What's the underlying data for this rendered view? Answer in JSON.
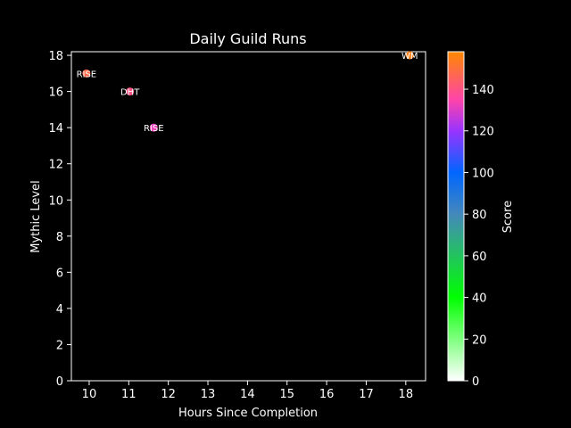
{
  "chart_data": {
    "type": "scatter",
    "title": "Daily Guild Runs",
    "xlabel": "Hours Since Completion",
    "ylabel": "Mythic Level",
    "xlim": [
      9.55,
      18.5
    ],
    "ylim": [
      0,
      18.2
    ],
    "x_ticks": [
      "10",
      "11",
      "12",
      "13",
      "14",
      "15",
      "16",
      "17",
      "18"
    ],
    "y_ticks": [
      "0",
      "2",
      "4",
      "6",
      "8",
      "10",
      "12",
      "14",
      "16",
      "18"
    ],
    "points": [
      {
        "x": 9.93,
        "y": 17,
        "label": "RISE",
        "score": 148
      },
      {
        "x": 11.03,
        "y": 16,
        "label": "DHT",
        "score": 140
      },
      {
        "x": 11.63,
        "y": 14,
        "label": "RISE",
        "score": 132
      },
      {
        "x": 18.1,
        "y": 18,
        "label": "WM",
        "score": 155
      }
    ],
    "colorbar": {
      "label": "Score",
      "range": [
        0,
        158
      ],
      "ticks": [
        "0",
        "20",
        "40",
        "60",
        "80",
        "100",
        "120",
        "140"
      ],
      "colormap": [
        {
          "v": 0,
          "c": "#ffffff"
        },
        {
          "v": 40,
          "c": "#00ff00"
        },
        {
          "v": 80,
          "c": "#4488bb"
        },
        {
          "v": 100,
          "c": "#0066ff"
        },
        {
          "v": 120,
          "c": "#9933ff"
        },
        {
          "v": 135,
          "c": "#ff44aa"
        },
        {
          "v": 158,
          "c": "#ff8800"
        }
      ]
    },
    "grid": false,
    "colors": {
      "background": "#000000",
      "foreground": "#ffffff"
    }
  }
}
